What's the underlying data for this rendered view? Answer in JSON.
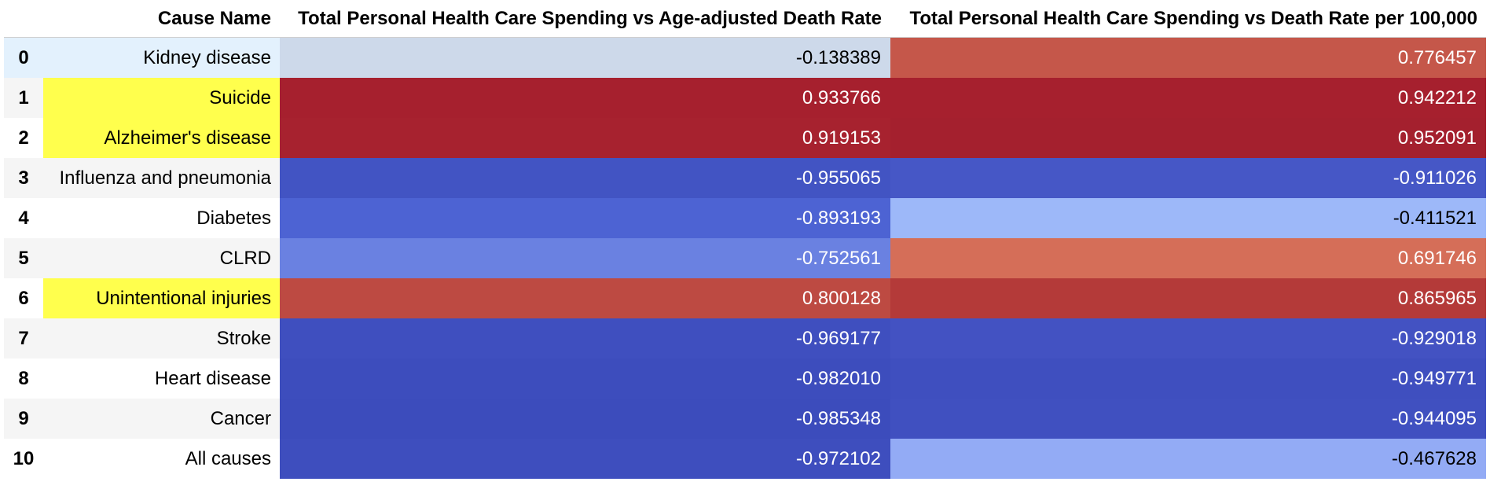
{
  "table": {
    "columns": {
      "index": "",
      "name": "Cause Name",
      "a": "Total Personal Health Care Spending vs Age-adjusted Death Rate",
      "b": "Total Personal Health Care Spending vs Death Rate per 100,000"
    },
    "rows": [
      {
        "index": "0",
        "name": "Kidney disease",
        "a": "-0.138389",
        "b": "0.776457",
        "a_bg": "#cdd9ea",
        "a_fg": "#000000",
        "b_bg": "#c5574a",
        "b_fg": "#ffffff",
        "name_highlight": false,
        "hover": true
      },
      {
        "index": "1",
        "name": "Suicide",
        "a": "0.933766",
        "b": "0.942212",
        "a_bg": "#a6202e",
        "a_fg": "#ffffff",
        "b_bg": "#a6202e",
        "b_fg": "#ffffff",
        "name_highlight": true,
        "hover": false
      },
      {
        "index": "2",
        "name": "Alzheimer's disease",
        "a": "0.919153",
        "b": "0.952091",
        "a_bg": "#a7222f",
        "a_fg": "#ffffff",
        "b_bg": "#a4202e",
        "b_fg": "#ffffff",
        "name_highlight": true,
        "hover": false
      },
      {
        "index": "3",
        "name": "Influenza and pneumonia",
        "a": "-0.955065",
        "b": "-0.911026",
        "a_bg": "#4254c3",
        "a_fg": "#ffffff",
        "b_bg": "#4657c6",
        "b_fg": "#ffffff",
        "name_highlight": false,
        "hover": false
      },
      {
        "index": "4",
        "name": "Diabetes",
        "a": "-0.893193",
        "b": "-0.411521",
        "a_bg": "#4d63d3",
        "a_fg": "#ffffff",
        "b_bg": "#9db8f9",
        "b_fg": "#000000",
        "name_highlight": false,
        "hover": false
      },
      {
        "index": "5",
        "name": "CLRD",
        "a": "-0.752561",
        "b": "0.691746",
        "a_bg": "#6a81e1",
        "a_fg": "#ffffff",
        "b_bg": "#d56e58",
        "b_fg": "#ffffff",
        "name_highlight": false,
        "hover": false
      },
      {
        "index": "6",
        "name": "Unintentional injuries",
        "a": "0.800128",
        "b": "0.865965",
        "a_bg": "#bd4a42",
        "a_fg": "#ffffff",
        "b_bg": "#b43a39",
        "b_fg": "#ffffff",
        "name_highlight": true,
        "hover": false
      },
      {
        "index": "7",
        "name": "Stroke",
        "a": "-0.969177",
        "b": "-0.929018",
        "a_bg": "#3f4fbf",
        "a_fg": "#ffffff",
        "b_bg": "#4352c2",
        "b_fg": "#ffffff",
        "name_highlight": false,
        "hover": false
      },
      {
        "index": "8",
        "name": "Heart disease",
        "a": "-0.982010",
        "b": "-0.949771",
        "a_bg": "#3d4dbd",
        "a_fg": "#ffffff",
        "b_bg": "#3f4fbf",
        "b_fg": "#ffffff",
        "name_highlight": false,
        "hover": false
      },
      {
        "index": "9",
        "name": "Cancer",
        "a": "-0.985348",
        "b": "-0.944095",
        "a_bg": "#3c4cbc",
        "a_fg": "#ffffff",
        "b_bg": "#4050c0",
        "b_fg": "#ffffff",
        "name_highlight": false,
        "hover": false
      },
      {
        "index": "10",
        "name": "All causes",
        "a": "-0.972102",
        "b": "-0.467628",
        "a_bg": "#3e4ebe",
        "a_fg": "#ffffff",
        "b_bg": "#93abf5",
        "b_fg": "#000000",
        "name_highlight": false,
        "hover": false
      }
    ]
  }
}
